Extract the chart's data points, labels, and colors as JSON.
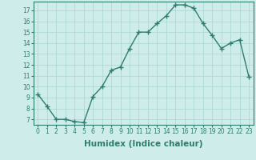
{
  "x": [
    0,
    1,
    2,
    3,
    4,
    5,
    6,
    7,
    8,
    9,
    10,
    11,
    12,
    13,
    14,
    15,
    16,
    17,
    18,
    19,
    20,
    21,
    22,
    23
  ],
  "y": [
    9.3,
    8.2,
    7.0,
    7.0,
    6.8,
    6.7,
    9.1,
    10.0,
    11.5,
    11.8,
    13.5,
    15.0,
    15.0,
    15.8,
    16.5,
    17.5,
    17.5,
    17.2,
    15.8,
    14.7,
    13.5,
    14.0,
    14.3,
    10.9
  ],
  "line_color": "#2e7d6e",
  "marker": "+",
  "marker_size": 4,
  "marker_edge_width": 1.0,
  "bg_color": "#ceecea",
  "grid_color": "#aed8d4",
  "xlabel": "Humidex (Indice chaleur)",
  "xlim": [
    -0.5,
    23.5
  ],
  "ylim": [
    6.5,
    17.8
  ],
  "yticks": [
    7,
    8,
    9,
    10,
    11,
    12,
    13,
    14,
    15,
    16,
    17
  ],
  "xticks": [
    0,
    1,
    2,
    3,
    4,
    5,
    6,
    7,
    8,
    9,
    10,
    11,
    12,
    13,
    14,
    15,
    16,
    17,
    18,
    19,
    20,
    21,
    22,
    23
  ],
  "tick_fontsize": 5.5,
  "label_fontsize": 7.5,
  "line_width": 1.0
}
